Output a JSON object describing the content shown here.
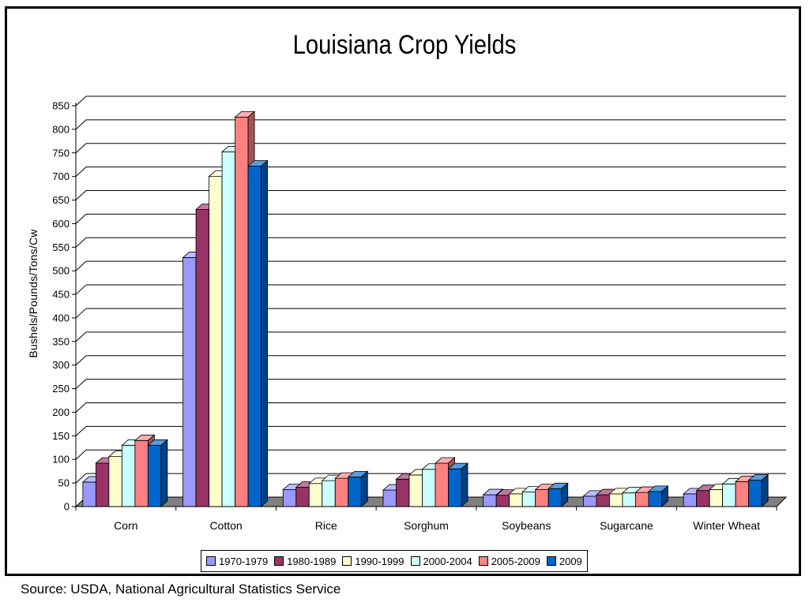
{
  "chart_data": {
    "type": "bar",
    "title": "Louisiana Crop Yields",
    "ylabel": "Bushels/Pounds/Tons/Cw",
    "xlabel": "",
    "ylim": [
      0,
      850
    ],
    "yticks": [
      "0",
      "50",
      "100",
      "150",
      "200",
      "250",
      "300",
      "350",
      "400",
      "450",
      "500",
      "550",
      "600",
      "650",
      "700",
      "750",
      "800",
      "850"
    ],
    "grid": true,
    "legend_position": "bottom",
    "categories": [
      "Corn",
      "Cotton",
      "Rice",
      "Sorghum",
      "Soybeans",
      "Sugarcane",
      "Winter Wheat"
    ],
    "series": [
      {
        "name": "1970-1979",
        "color": "#9999ff",
        "values": [
          52,
          528,
          36,
          35,
          25,
          22,
          27
        ]
      },
      {
        "name": "1980-1989",
        "color": "#993366",
        "values": [
          92,
          630,
          41,
          58,
          24,
          25,
          34
        ]
      },
      {
        "name": "1990-1999",
        "color": "#ffffcc",
        "values": [
          106,
          700,
          49,
          67,
          27,
          27,
          36
        ]
      },
      {
        "name": "2000-2004",
        "color": "#ccffff",
        "values": [
          130,
          752,
          55,
          79,
          31,
          29,
          48
        ]
      },
      {
        "name": "2005-2009",
        "color": "#ff8080",
        "values": [
          140,
          826,
          60,
          92,
          36,
          30,
          53
        ]
      },
      {
        "name": "2009",
        "color": "#0066cc",
        "values": [
          130,
          722,
          63,
          80,
          38,
          32,
          56
        ]
      }
    ]
  },
  "footer": {
    "source": "Source: USDA, National Agricultural Statistics Service"
  }
}
